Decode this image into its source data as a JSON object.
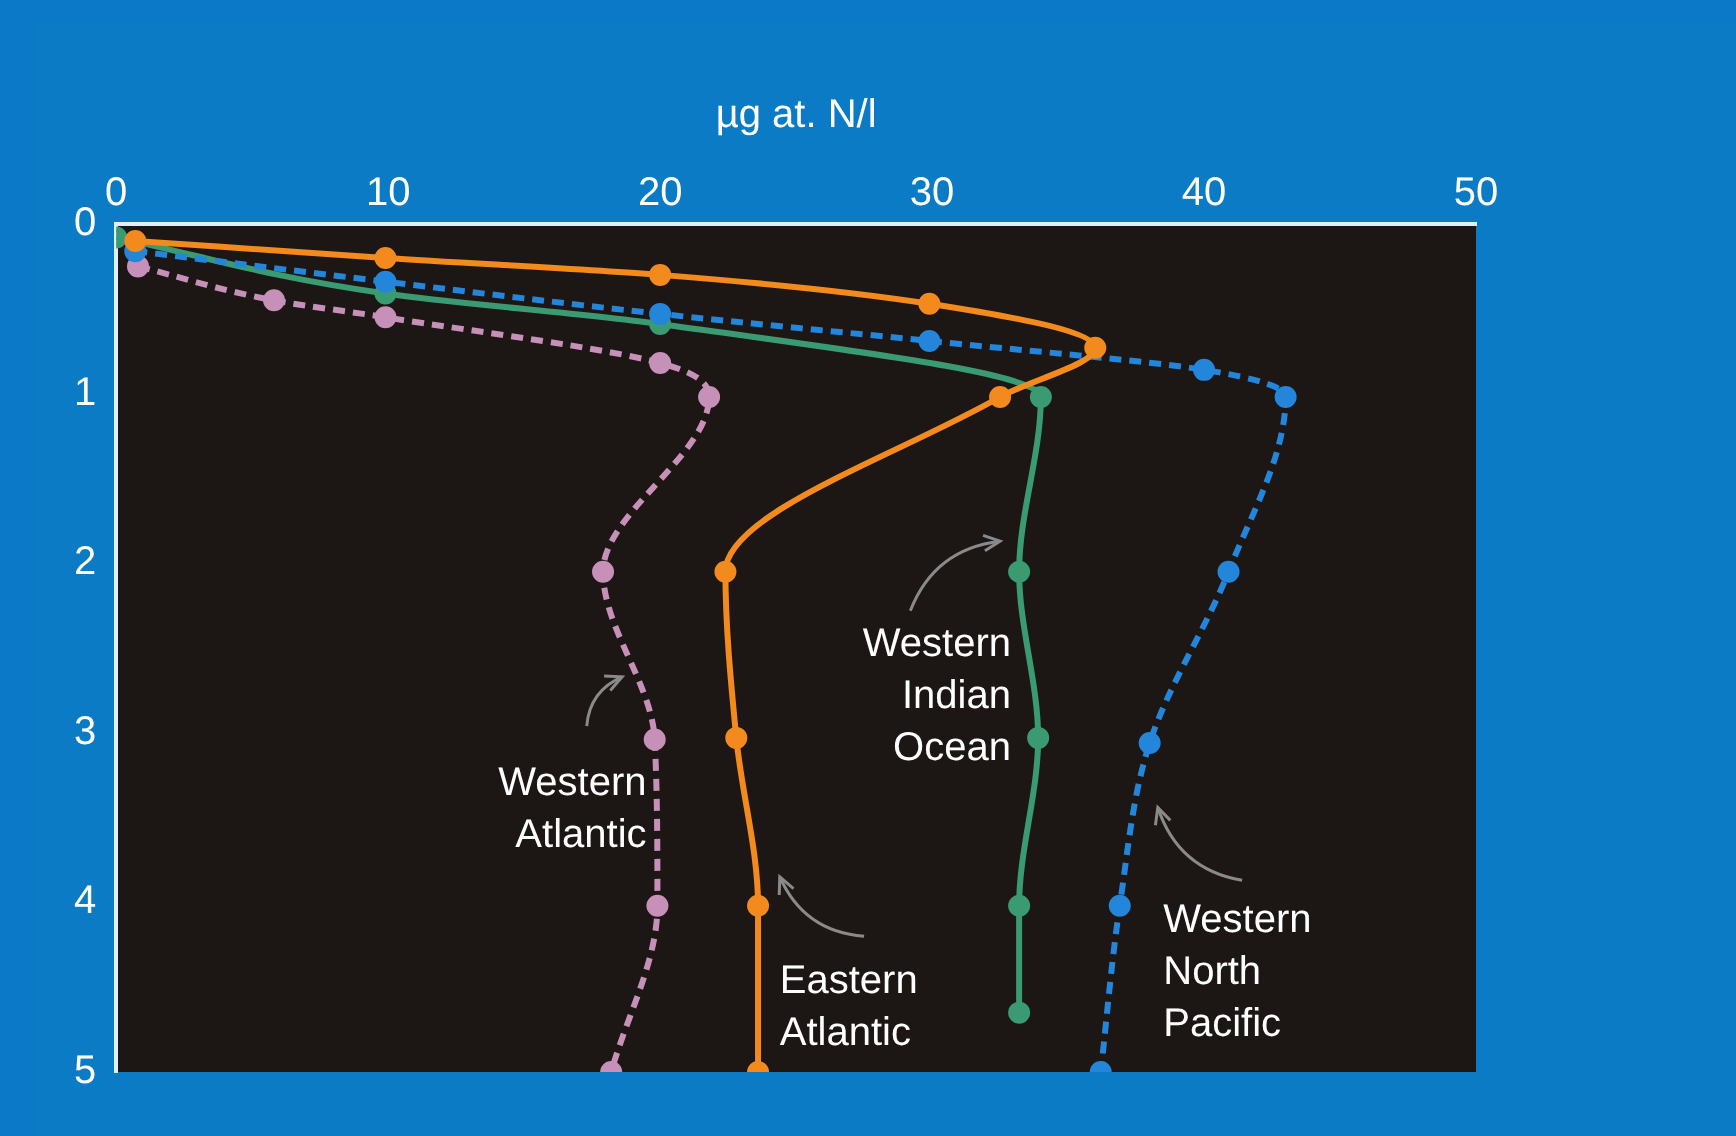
{
  "chart_data": {
    "type": "line",
    "xlabel": "µg at. N/l",
    "xlim": [
      0,
      50
    ],
    "xticks": [
      0,
      10,
      20,
      30,
      40,
      50
    ],
    "ylim": [
      5,
      0
    ],
    "yticks": [
      0,
      1,
      2,
      3,
      4,
      5
    ],
    "grid": false,
    "legend": false,
    "marker": "circle",
    "series": [
      {
        "name": "Eastern Atlantic",
        "color": "#f28a1e",
        "line_style": "solid",
        "x": [
          0.7,
          9.9,
          20,
          29.9,
          36,
          32.5,
          22.4,
          22.8,
          23.6,
          23.6
        ],
        "values": [
          0.1,
          0.2,
          0.3,
          0.47,
          0.73,
          1.02,
          2.05,
          3.03,
          4.02,
          5
        ]
      },
      {
        "name": "Western North Pacific",
        "color": "#2386db",
        "line_style": "dashed",
        "x": [
          0.7,
          9.9,
          20,
          29.9,
          40,
          43,
          40.9,
          38,
          36.9,
          36.2
        ],
        "values": [
          0.16,
          0.34,
          0.53,
          0.69,
          0.86,
          1.02,
          2.05,
          3.06,
          4.02,
          5
        ]
      },
      {
        "name": "Western Indian Ocean",
        "color": "#3a9a72",
        "line_style": "solid",
        "x": [
          0,
          9.9,
          20,
          34,
          33.2,
          33.9,
          33.2,
          33.2
        ],
        "values": [
          0.08,
          0.41,
          0.59,
          1.02,
          2.05,
          3.03,
          4.02,
          4.65
        ]
      },
      {
        "name": "Western Atlantic",
        "color": "#c690b8",
        "line_style": "dashed",
        "x": [
          0.8,
          5.8,
          9.9,
          20,
          21.8,
          17.9,
          19.8,
          19.9,
          18.2
        ],
        "values": [
          0.25,
          0.45,
          0.55,
          0.82,
          1.02,
          2.05,
          3.04,
          4.02,
          5
        ]
      }
    ]
  }
}
